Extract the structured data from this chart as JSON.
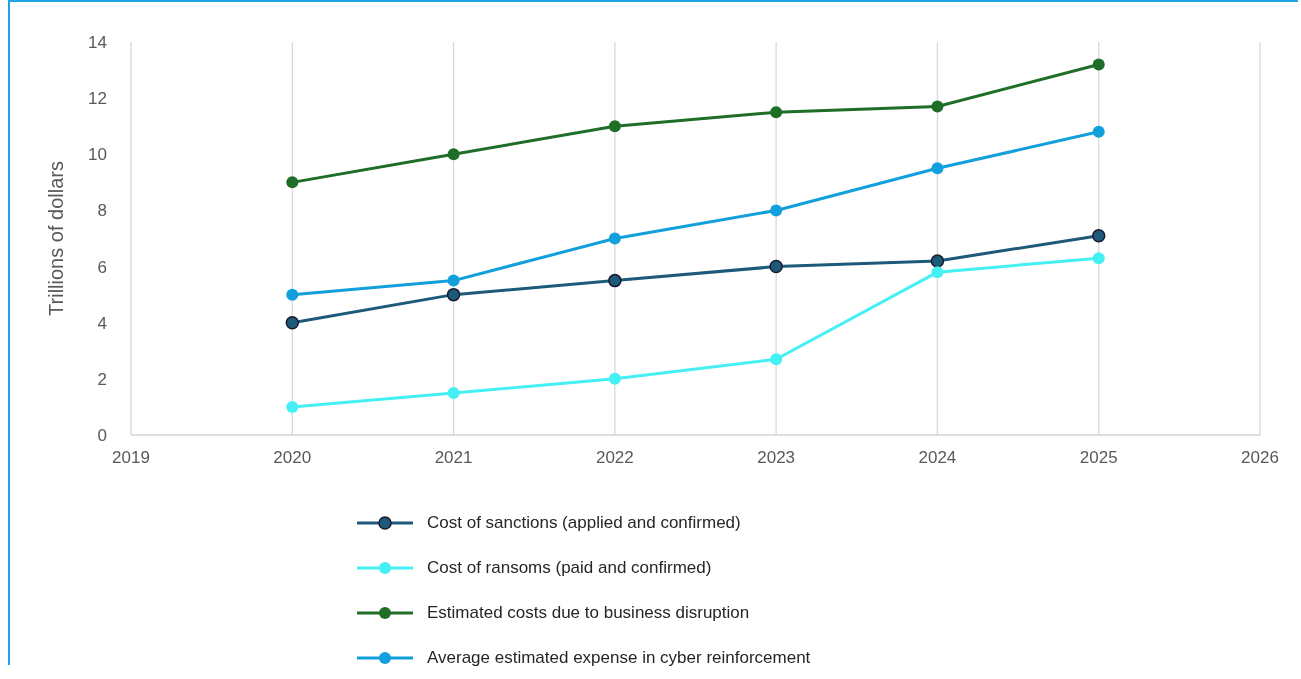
{
  "chart_data": {
    "type": "line",
    "ylabel": "Trillions of dollars",
    "x": [
      2020,
      2021,
      2022,
      2023,
      2024,
      2025
    ],
    "xlim": [
      2019,
      2026
    ],
    "xticks": [
      2019,
      2020,
      2021,
      2022,
      2023,
      2024,
      2025,
      2026
    ],
    "ylim": [
      0,
      14
    ],
    "yticks": [
      0,
      2,
      4,
      6,
      8,
      10,
      12,
      14
    ],
    "grid": true,
    "legend": "bottom",
    "marker": "circle",
    "line_style": "solid",
    "series": [
      {
        "name": "Cost of sanctions (applied and confirmed)",
        "color": "#1d5a7a",
        "values": [
          4,
          5,
          5.5,
          6,
          6.2,
          7.1
        ]
      },
      {
        "name": "Cost of ransoms (paid and confirmed)",
        "color": "#45f0f5",
        "values": [
          1,
          1.5,
          2,
          2.7,
          5.8,
          6.3
        ]
      },
      {
        "name": "Estimated costs due to business disruption",
        "color": "#1e6e28",
        "values": [
          9,
          10,
          11,
          11.5,
          11.7,
          13.2
        ]
      },
      {
        "name": "Average estimated expense in cyber reinforcement",
        "color": "#12a0dc",
        "values": [
          5,
          5.5,
          7,
          8,
          9.5,
          10.8
        ]
      }
    ]
  }
}
